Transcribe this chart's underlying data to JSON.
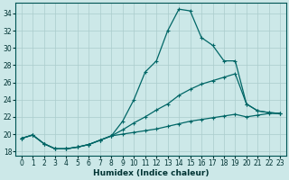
{
  "xlabel": "Humidex (Indice chaleur)",
  "background_color": "#cce8e8",
  "grid_color": "#aacccc",
  "line_color": "#006666",
  "xlim": [
    -0.5,
    23.5
  ],
  "ylim": [
    17.5,
    35.2
  ],
  "yticks": [
    18,
    20,
    22,
    24,
    26,
    28,
    30,
    32,
    34
  ],
  "xticks": [
    0,
    1,
    2,
    3,
    4,
    5,
    6,
    7,
    8,
    9,
    10,
    11,
    12,
    13,
    14,
    15,
    16,
    17,
    18,
    19,
    20,
    21,
    22,
    23
  ],
  "series1_x": [
    0,
    1,
    2,
    3,
    4,
    5,
    6,
    7,
    8,
    9,
    10,
    11,
    12,
    13,
    14,
    15,
    16,
    17,
    18,
    19,
    20,
    21,
    22,
    23
  ],
  "series1_y": [
    19.5,
    19.9,
    18.9,
    18.3,
    18.3,
    18.5,
    18.8,
    19.3,
    19.8,
    21.5,
    24.0,
    27.2,
    28.5,
    32.0,
    34.5,
    34.3,
    31.2,
    30.3,
    28.5,
    28.5,
    23.5,
    22.7,
    22.5,
    22.4
  ],
  "series2_x": [
    0,
    1,
    2,
    3,
    4,
    5,
    6,
    7,
    8,
    9,
    10,
    11,
    12,
    13,
    14,
    15,
    16,
    17,
    18,
    19,
    20,
    21,
    22,
    23
  ],
  "series2_y": [
    19.5,
    19.9,
    18.9,
    18.3,
    18.3,
    18.5,
    18.8,
    19.3,
    19.8,
    20.5,
    21.3,
    22.0,
    22.8,
    23.5,
    24.5,
    25.2,
    25.8,
    26.2,
    26.6,
    27.0,
    23.5,
    22.7,
    22.5,
    22.4
  ],
  "series3_x": [
    0,
    1,
    2,
    3,
    4,
    5,
    6,
    7,
    8,
    9,
    10,
    11,
    12,
    13,
    14,
    15,
    16,
    17,
    18,
    19,
    20,
    21,
    22,
    23
  ],
  "series3_y": [
    19.5,
    19.9,
    18.9,
    18.3,
    18.3,
    18.5,
    18.8,
    19.3,
    19.8,
    20.0,
    20.2,
    20.4,
    20.6,
    20.9,
    21.2,
    21.5,
    21.7,
    21.9,
    22.1,
    22.3,
    22.0,
    22.2,
    22.4,
    22.4
  ],
  "xlabel_fontsize": 6.5,
  "tick_fontsize": 5.5
}
